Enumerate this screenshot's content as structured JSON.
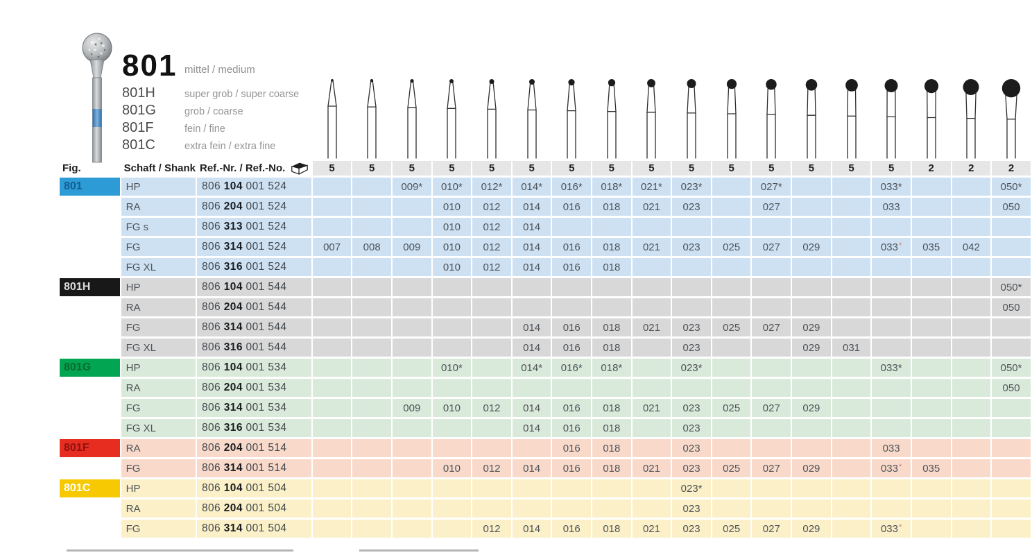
{
  "title": {
    "fig": "801",
    "grit": "mittel / medium"
  },
  "variants": [
    {
      "code": "801H",
      "desc": "super grob / super coarse"
    },
    {
      "code": "801G",
      "desc": "grob / coarse"
    },
    {
      "code": "801F",
      "desc": "fein / fine"
    },
    {
      "code": "801C",
      "desc": "extra fein / extra fine"
    }
  ],
  "icons": {
    "pack_unit": "package-icon",
    "size_column": "bur-size-icon",
    "product": "diamond-bur-photo"
  },
  "table": {
    "headers": {
      "fig": "Fig.",
      "shank": "Schaft / Shank",
      "ref": "Ref.-Nr. / Ref.-No."
    },
    "pack_quantities": [
      "5",
      "5",
      "5",
      "5",
      "5",
      "5",
      "5",
      "5",
      "5",
      "5",
      "5",
      "5",
      "5",
      "5",
      "5",
      "2",
      "2",
      "2"
    ],
    "sections": [
      {
        "label": "801",
        "colors": {
          "badge_bg": "#2d9bd5",
          "badge_fg": "#135e94",
          "row_bg": "#cde1f3"
        },
        "rows": [
          {
            "shank": "HP",
            "ref": [
              "806",
              "104",
              "001",
              "524"
            ],
            "cells": [
              "",
              "",
              "009*",
              "010*",
              "012*",
              "014*",
              "016*",
              "018*",
              "021*",
              "023*",
              "",
              "027*",
              "",
              "",
              "033*",
              "",
              "",
              "050*"
            ]
          },
          {
            "shank": "RA",
            "ref": [
              "806",
              "204",
              "001",
              "524"
            ],
            "cells": [
              "",
              "",
              "",
              "010",
              "012",
              "014",
              "016",
              "018",
              "021",
              "023",
              "",
              "027",
              "",
              "",
              "033",
              "",
              "",
              "050"
            ]
          },
          {
            "shank": "FG s",
            "ref": [
              "806",
              "313",
              "001",
              "524"
            ],
            "cells": [
              "",
              "",
              "",
              "010",
              "012",
              "014",
              "",
              "",
              "",
              "",
              "",
              "",
              "",
              "",
              "",
              "",
              "",
              ""
            ]
          },
          {
            "shank": "FG",
            "ref": [
              "806",
              "314",
              "001",
              "524"
            ],
            "cells": [
              "007",
              "008",
              "009",
              "010",
              "012",
              "014",
              "016",
              "018",
              "021",
              "023",
              "025",
              "027",
              "029",
              "",
              {
                "v": "033",
                "mark": "*"
              },
              "035",
              "042",
              ""
            ]
          },
          {
            "shank": "FG XL",
            "ref": [
              "806",
              "316",
              "001",
              "524"
            ],
            "cells": [
              "",
              "",
              "",
              "010",
              "012",
              "014",
              "016",
              "018",
              "",
              "",
              "",
              "",
              "",
              "",
              "",
              "",
              "",
              ""
            ]
          }
        ]
      },
      {
        "label": "801H",
        "colors": {
          "badge_bg": "#181818",
          "badge_fg": "#dcdcdc",
          "row_bg": "#d8d8d8"
        },
        "rows": [
          {
            "shank": "HP",
            "ref": [
              "806",
              "104",
              "001",
              "544"
            ],
            "cells": [
              "",
              "",
              "",
              "",
              "",
              "",
              "",
              "",
              "",
              "",
              "",
              "",
              "",
              "",
              "",
              "",
              "",
              "050*"
            ]
          },
          {
            "shank": "RA",
            "ref": [
              "806",
              "204",
              "001",
              "544"
            ],
            "cells": [
              "",
              "",
              "",
              "",
              "",
              "",
              "",
              "",
              "",
              "",
              "",
              "",
              "",
              "",
              "",
              "",
              "",
              "050"
            ]
          },
          {
            "shank": "FG",
            "ref": [
              "806",
              "314",
              "001",
              "544"
            ],
            "cells": [
              "",
              "",
              "",
              "",
              "",
              "014",
              "016",
              "018",
              "021",
              "023",
              "025",
              "027",
              "029",
              "",
              "",
              "",
              "",
              ""
            ]
          },
          {
            "shank": "FG XL",
            "ref": [
              "806",
              "316",
              "001",
              "544"
            ],
            "cells": [
              "",
              "",
              "",
              "",
              "",
              "014",
              "016",
              "018",
              "",
              "023",
              "",
              "",
              "029",
              "031",
              "",
              "",
              "",
              ""
            ]
          }
        ]
      },
      {
        "label": "801G",
        "colors": {
          "badge_bg": "#02a551",
          "badge_fg": "#0a6b33",
          "row_bg": "#d9e9da"
        },
        "rows": [
          {
            "shank": "HP",
            "ref": [
              "806",
              "104",
              "001",
              "534"
            ],
            "cells": [
              "",
              "",
              "",
              "010*",
              "",
              "014*",
              "016*",
              "018*",
              "",
              "023*",
              "",
              "",
              "",
              "",
              "033*",
              "",
              "",
              "050*"
            ]
          },
          {
            "shank": "RA",
            "ref": [
              "806",
              "204",
              "001",
              "534"
            ],
            "cells": [
              "",
              "",
              "",
              "",
              "",
              "",
              "",
              "",
              "",
              "",
              "",
              "",
              "",
              "",
              "",
              "",
              "",
              "050"
            ]
          },
          {
            "shank": "FG",
            "ref": [
              "806",
              "314",
              "001",
              "534"
            ],
            "cells": [
              "",
              "",
              "009",
              "010",
              "012",
              "014",
              "016",
              "018",
              "021",
              "023",
              "025",
              "027",
              "029",
              "",
              "",
              "",
              "",
              ""
            ]
          },
          {
            "shank": "FG XL",
            "ref": [
              "806",
              "316",
              "001",
              "534"
            ],
            "cells": [
              "",
              "",
              "",
              "",
              "",
              "014",
              "016",
              "018",
              "",
              "023",
              "",
              "",
              "",
              "",
              "",
              "",
              "",
              ""
            ]
          }
        ]
      },
      {
        "label": "801F",
        "colors": {
          "badge_bg": "#e72c20",
          "badge_fg": "#8e1210",
          "row_bg": "#f8d9ca"
        },
        "rows": [
          {
            "shank": "RA",
            "ref": [
              "806",
              "204",
              "001",
              "514"
            ],
            "cells": [
              "",
              "",
              "",
              "",
              "",
              "",
              "016",
              "018",
              "",
              "023",
              "",
              "",
              "",
              "",
              "033",
              "",
              "",
              ""
            ]
          },
          {
            "shank": "FG",
            "ref": [
              "806",
              "314",
              "001",
              "514"
            ],
            "cells": [
              "",
              "",
              "",
              "010",
              "012",
              "014",
              "016",
              "018",
              "021",
              "023",
              "025",
              "027",
              "029",
              "",
              {
                "v": "033",
                "mark": "*"
              },
              "035",
              "",
              ""
            ]
          }
        ]
      },
      {
        "label": "801C",
        "colors": {
          "badge_bg": "#f6c902",
          "badge_fg": "#ffffff",
          "row_bg": "#fbf0c7"
        },
        "rows": [
          {
            "shank": "HP",
            "ref": [
              "806",
              "104",
              "001",
              "504"
            ],
            "cells": [
              "",
              "",
              "",
              "",
              "",
              "",
              "",
              "",
              "",
              "023*",
              "",
              "",
              "",
              "",
              "",
              "",
              "",
              ""
            ]
          },
          {
            "shank": "RA",
            "ref": [
              "806",
              "204",
              "001",
              "504"
            ],
            "cells": [
              "",
              "",
              "",
              "",
              "",
              "",
              "",
              "",
              "",
              "023",
              "",
              "",
              "",
              "",
              "",
              "",
              "",
              ""
            ]
          },
          {
            "shank": "FG",
            "ref": [
              "806",
              "314",
              "001",
              "504"
            ],
            "cells": [
              "",
              "",
              "",
              "",
              "012",
              "014",
              "016",
              "018",
              "021",
              "023",
              "025",
              "027",
              "029",
              "",
              {
                "v": "033",
                "mark": "*"
              },
              "",
              "",
              ""
            ]
          }
        ]
      }
    ]
  }
}
